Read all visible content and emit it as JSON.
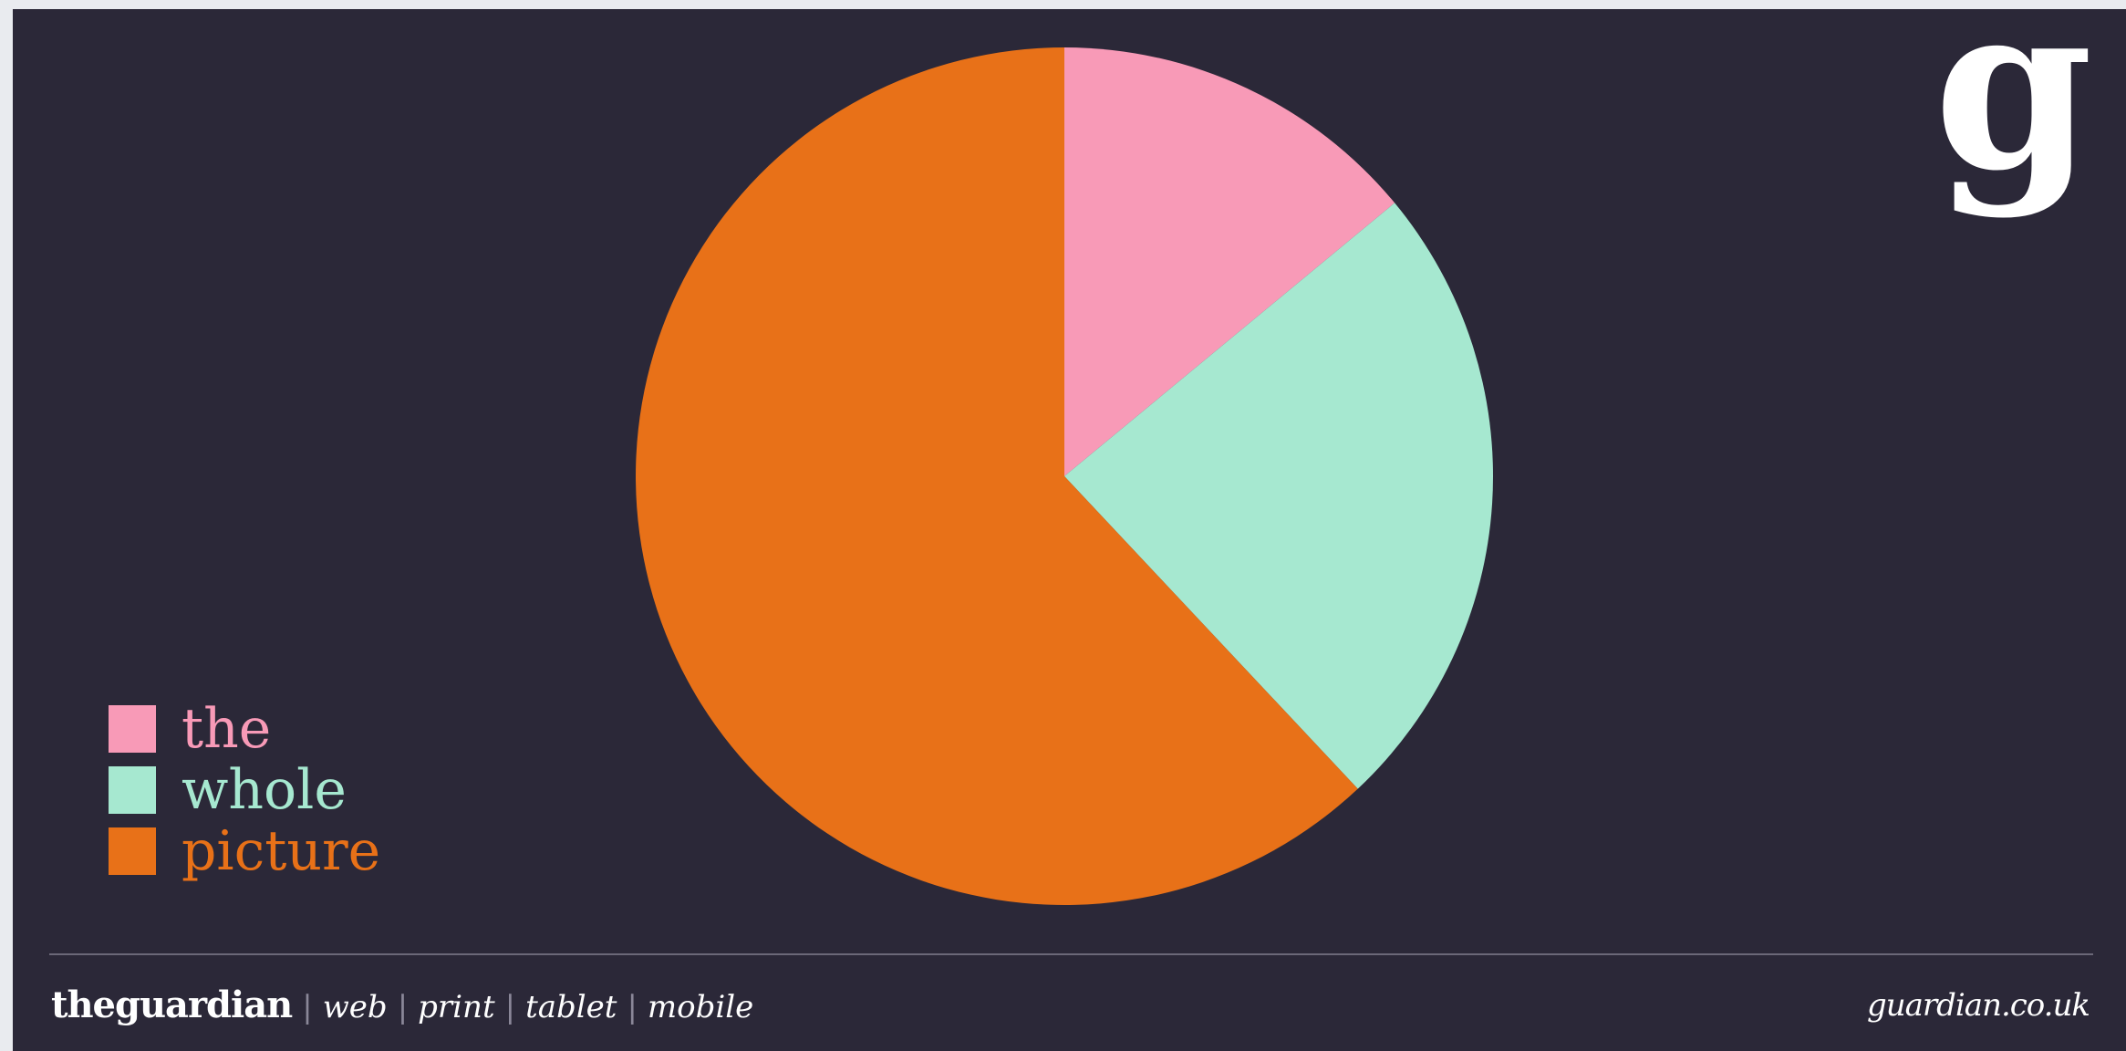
{
  "brand": {
    "logo_glyph": "g",
    "wordmark": "theguardian",
    "separator": "|",
    "platforms": [
      "web",
      "print",
      "tablet",
      "mobile"
    ],
    "site": "guardian.co.uk"
  },
  "colors": {
    "background": "#2b2838",
    "text": "#ffffff"
  },
  "chart_data": {
    "type": "pie",
    "title": "",
    "start_angle_deg": 0,
    "direction": "clockwise",
    "legend_position": "bottom-left",
    "slices": [
      {
        "label": "the",
        "value": 14,
        "color": "#f89ab7"
      },
      {
        "label": "whole",
        "value": 24,
        "color": "#a6e8d0"
      },
      {
        "label": "picture",
        "value": 62,
        "color": "#e87118"
      }
    ]
  }
}
